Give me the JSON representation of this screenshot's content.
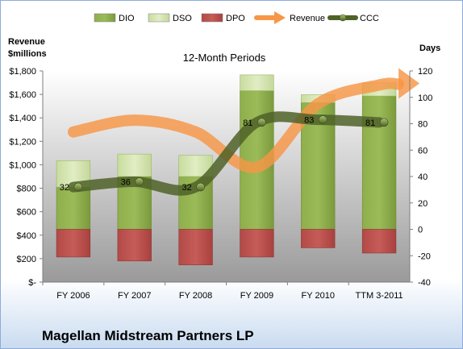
{
  "chart_data": {
    "type": "bar",
    "title": "12-Month Periods",
    "company": "Magellan Midstream Partners LP",
    "left_axis_label": [
      "Revenue",
      "$millions"
    ],
    "right_axis_label": "Days",
    "categories": [
      "FY 2006",
      "FY 2007",
      "FY 2008",
      "FY 2009",
      "FY 2010",
      "TTM 3-2011"
    ],
    "left_axis": {
      "min": 0,
      "max": 1800,
      "step": 200,
      "tick_labels": [
        "$-",
        "$200",
        "$400",
        "$600",
        "$800",
        "$1,000",
        "$1,200",
        "$1,400",
        "$1,600",
        "$1,800"
      ]
    },
    "right_axis": {
      "min": -40,
      "max": 120,
      "step": 20,
      "tick_labels": [
        "-40",
        "-20",
        "0",
        "20",
        "40",
        "60",
        "80",
        "100",
        "120"
      ]
    },
    "series": [
      {
        "name": "DIO",
        "kind": "stacked-bar",
        "axis": "days",
        "values": [
          32,
          40,
          40,
          105,
          96,
          101
        ]
      },
      {
        "name": "DSO",
        "kind": "stacked-bar",
        "axis": "days",
        "values": [
          20,
          17,
          16,
          12,
          6,
          10
        ]
      },
      {
        "name": "DPO",
        "kind": "negative-bar",
        "axis": "days",
        "values": [
          -21,
          -24,
          -27,
          -21,
          -14,
          -18
        ]
      },
      {
        "name": "Revenue",
        "kind": "arrow-line",
        "axis": "revenue",
        "values": [
          1280,
          1380,
          1280,
          980,
          1520,
          1680
        ]
      },
      {
        "name": "CCC",
        "kind": "line",
        "axis": "days",
        "values": [
          32,
          36,
          32,
          81,
          83,
          81
        ],
        "labels": [
          "32",
          "36",
          "32",
          "81",
          "83",
          "81"
        ]
      }
    ],
    "legend_position": "top",
    "grid": false,
    "colors": {
      "DIO": "#77933c",
      "DSO": "#d7e4bd",
      "DPO": "#c0504d",
      "Revenue": "#f79646",
      "CCC": "#4f6228"
    }
  }
}
